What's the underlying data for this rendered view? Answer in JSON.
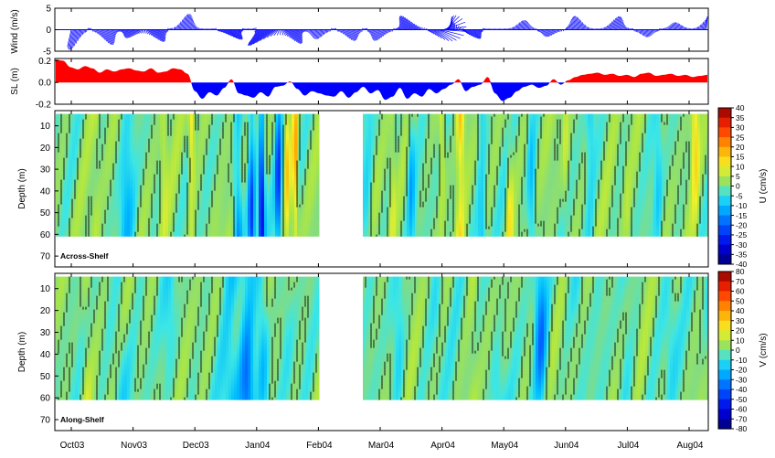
{
  "chart_data": {
    "type": "time-series-and-contour-panels",
    "x_tick_labels": [
      "Oct03",
      "Nov03",
      "Dec03",
      "Jan04",
      "Feb04",
      "Mar04",
      "Apr04",
      "May04",
      "Jun04",
      "Jul04",
      "Aug04"
    ],
    "panels": [
      {
        "id": "wind",
        "type": "stick-vector",
        "ylabel": "Wind (m/s)",
        "yticks": [
          "5",
          "0",
          "-5"
        ],
        "ylim": [
          -5,
          5
        ],
        "color": "#0000ff",
        "events": [
          {
            "month": 0.05,
            "amp": 4.5,
            "dir": -100
          },
          {
            "month": 0.55,
            "amp": 3.5,
            "dir": -70
          },
          {
            "month": 1.0,
            "amp": 2.0,
            "dir": -120
          },
          {
            "month": 1.35,
            "amp": 3.0,
            "dir": -60
          },
          {
            "month": 1.85,
            "amp": 3.5,
            "dir": 80
          },
          {
            "month": 2.55,
            "amp": 3.0,
            "dir": -45
          },
          {
            "month": 3.2,
            "amp": 5.0,
            "dir": -135
          },
          {
            "month": 3.55,
            "amp": 3.5,
            "dir": -60
          },
          {
            "month": 4.0,
            "amp": 2.0,
            "dir": -100
          },
          {
            "month": 4.5,
            "amp": 2.5,
            "dir": -70
          },
          {
            "month": 5.0,
            "amp": 2.5,
            "dir": -110
          },
          {
            "month": 5.5,
            "amp": 3.5,
            "dir": 120
          },
          {
            "month": 5.95,
            "amp": 3.5,
            "dir": -60
          },
          {
            "month": 6.1,
            "amp": 2.5,
            "dir": 100
          },
          {
            "month": 6.45,
            "amp": 2.5,
            "dir": -50
          },
          {
            "month": 7.3,
            "amp": 2.0,
            "dir": 80
          },
          {
            "month": 7.75,
            "amp": 1.5,
            "dir": -110
          },
          {
            "month": 8.2,
            "amp": 3.0,
            "dir": 100
          },
          {
            "month": 8.8,
            "amp": 3.0,
            "dir": 75
          },
          {
            "month": 9.3,
            "amp": 1.5,
            "dir": -80
          },
          {
            "month": 9.8,
            "amp": 1.5,
            "dir": 100
          },
          {
            "month": 10.3,
            "amp": 3.0,
            "dir": 80
          }
        ]
      },
      {
        "id": "sea-level",
        "type": "filled-line",
        "ylabel": "SL (m)",
        "yticks": [
          "0.2",
          "0.0",
          "-0.2"
        ],
        "ylim": [
          -0.2,
          0.22
        ],
        "positive_color": "#ff0000",
        "negative_color": "#0000ff",
        "values": [
          0.21,
          0.2,
          0.14,
          0.12,
          0.15,
          0.13,
          0.09,
          0.12,
          0.1,
          0.12,
          0.13,
          0.11,
          0.1,
          0.13,
          0.09,
          0.1,
          0.13,
          0.12,
          0.08,
          -0.08,
          -0.15,
          -0.09,
          -0.12,
          -0.05,
          0.03,
          -0.1,
          -0.12,
          -0.14,
          -0.09,
          -0.13,
          -0.04,
          -0.03,
          0.01,
          -0.06,
          -0.12,
          -0.08,
          -0.1,
          -0.12,
          -0.13,
          -0.08,
          -0.14,
          -0.09,
          -0.04,
          -0.1,
          -0.07,
          -0.16,
          -0.13,
          -0.05,
          -0.15,
          -0.1,
          -0.13,
          -0.06,
          -0.1,
          -0.06,
          -0.02,
          0.03,
          -0.08,
          -0.04,
          -0.02,
          0.05,
          -0.1,
          -0.17,
          -0.14,
          -0.08,
          -0.04,
          -0.02,
          -0.05,
          -0.03,
          0.03,
          -0.02,
          0.02,
          0.05,
          0.07,
          0.08,
          0.09,
          0.07,
          0.08,
          0.06,
          0.07,
          0.05,
          0.08,
          0.09,
          0.06,
          0.07,
          0.08,
          0.06,
          0.07,
          0.05,
          0.06,
          0.07
        ]
      },
      {
        "id": "across-shelf",
        "type": "heatmap",
        "label": "Across-Shelf",
        "ylabel": "Depth (m)",
        "yticks": [
          "10",
          "20",
          "30",
          "40",
          "50",
          "60",
          "70"
        ],
        "ylim": [
          75,
          3
        ],
        "colorbar": {
          "label": "U (cm/s)",
          "ticks": [
            "40",
            "35",
            "30",
            "25",
            "20",
            "15",
            "10",
            "5",
            "0",
            "-5",
            "-10",
            "-15",
            "-20",
            "-25",
            "-30",
            "-35",
            "-40"
          ],
          "range": [
            -40,
            40
          ]
        },
        "data_gap_months": [
          4.0,
          4.7
        ],
        "data_end_depth": 61,
        "seed": 11,
        "anomalies": [
          {
            "month": 0.4,
            "half_width": 0.08,
            "value": 4
          },
          {
            "month": 0.9,
            "half_width": 0.12,
            "value": -8
          },
          {
            "month": 1.5,
            "half_width": 0.06,
            "value": 6
          },
          {
            "month": 1.95,
            "half_width": 0.05,
            "value": 12
          },
          {
            "month": 2.35,
            "half_width": 0.12,
            "value": 3
          },
          {
            "month": 2.7,
            "half_width": 0.07,
            "value": -14
          },
          {
            "month": 2.92,
            "half_width": 0.06,
            "value": -22
          },
          {
            "month": 3.08,
            "half_width": 0.05,
            "value": -30
          },
          {
            "month": 3.35,
            "half_width": 0.05,
            "value": -20
          },
          {
            "month": 3.5,
            "half_width": 0.05,
            "value": 12
          },
          {
            "month": 3.62,
            "half_width": 0.04,
            "value": 18
          },
          {
            "month": 4.8,
            "half_width": 0.08,
            "value": -6
          },
          {
            "month": 5.2,
            "half_width": 0.05,
            "value": 6
          },
          {
            "month": 5.5,
            "half_width": 0.06,
            "value": -10
          },
          {
            "month": 6.0,
            "half_width": 0.05,
            "value": 8
          },
          {
            "month": 6.3,
            "half_width": 0.06,
            "value": 14
          },
          {
            "month": 6.65,
            "half_width": 0.07,
            "value": -10
          },
          {
            "month": 7.1,
            "half_width": 0.06,
            "value": 9
          },
          {
            "month": 7.45,
            "half_width": 0.07,
            "value": -8
          },
          {
            "month": 8.0,
            "half_width": 0.06,
            "value": 6
          },
          {
            "month": 8.4,
            "half_width": 0.07,
            "value": -6
          },
          {
            "month": 9.0,
            "half_width": 0.06,
            "value": 3
          },
          {
            "month": 9.5,
            "half_width": 0.07,
            "value": -6
          },
          {
            "month": 10.1,
            "half_width": 0.06,
            "value": 10
          },
          {
            "month": 10.4,
            "half_width": 0.06,
            "value": 5
          }
        ]
      },
      {
        "id": "along-shelf",
        "type": "heatmap",
        "label": "Along-Shelf",
        "ylabel": "Depth (m)",
        "yticks": [
          "10",
          "20",
          "30",
          "40",
          "50",
          "60",
          "70"
        ],
        "ylim": [
          75,
          3
        ],
        "colorbar": {
          "label": "V (cm/s)",
          "ticks": [
            "80",
            "70",
            "60",
            "50",
            "40",
            "30",
            "20",
            "10",
            "0",
            "-10",
            "-20",
            "-30",
            "-40",
            "-50",
            "-60",
            "-70",
            "-80"
          ],
          "range": [
            -80,
            80
          ]
        },
        "data_gap_months": [
          4.0,
          4.7
        ],
        "data_end_depth": 61,
        "seed": 29,
        "anomalies": [
          {
            "month": 0.25,
            "half_width": 0.08,
            "value": 10
          },
          {
            "month": 0.8,
            "half_width": 0.15,
            "value": -12
          },
          {
            "month": 1.6,
            "half_width": 0.12,
            "value": -8
          },
          {
            "month": 2.2,
            "half_width": 0.1,
            "value": -4
          },
          {
            "month": 2.6,
            "half_width": 0.15,
            "value": -18
          },
          {
            "month": 2.85,
            "half_width": 0.12,
            "value": -32
          },
          {
            "month": 3.1,
            "half_width": 0.1,
            "value": -22
          },
          {
            "month": 3.5,
            "half_width": 0.12,
            "value": -6
          },
          {
            "month": 5.3,
            "half_width": 0.1,
            "value": -10
          },
          {
            "month": 5.9,
            "half_width": 0.12,
            "value": -8
          },
          {
            "month": 6.5,
            "half_width": 0.08,
            "value": 6
          },
          {
            "month": 6.9,
            "half_width": 0.12,
            "value": -12
          },
          {
            "month": 7.6,
            "half_width": 0.1,
            "value": -28
          },
          {
            "month": 8.2,
            "half_width": 0.15,
            "value": -8
          },
          {
            "month": 9.0,
            "half_width": 0.15,
            "value": -6
          },
          {
            "month": 9.7,
            "half_width": 0.12,
            "value": -10
          },
          {
            "month": 10.3,
            "half_width": 0.1,
            "value": -8
          }
        ]
      }
    ]
  }
}
